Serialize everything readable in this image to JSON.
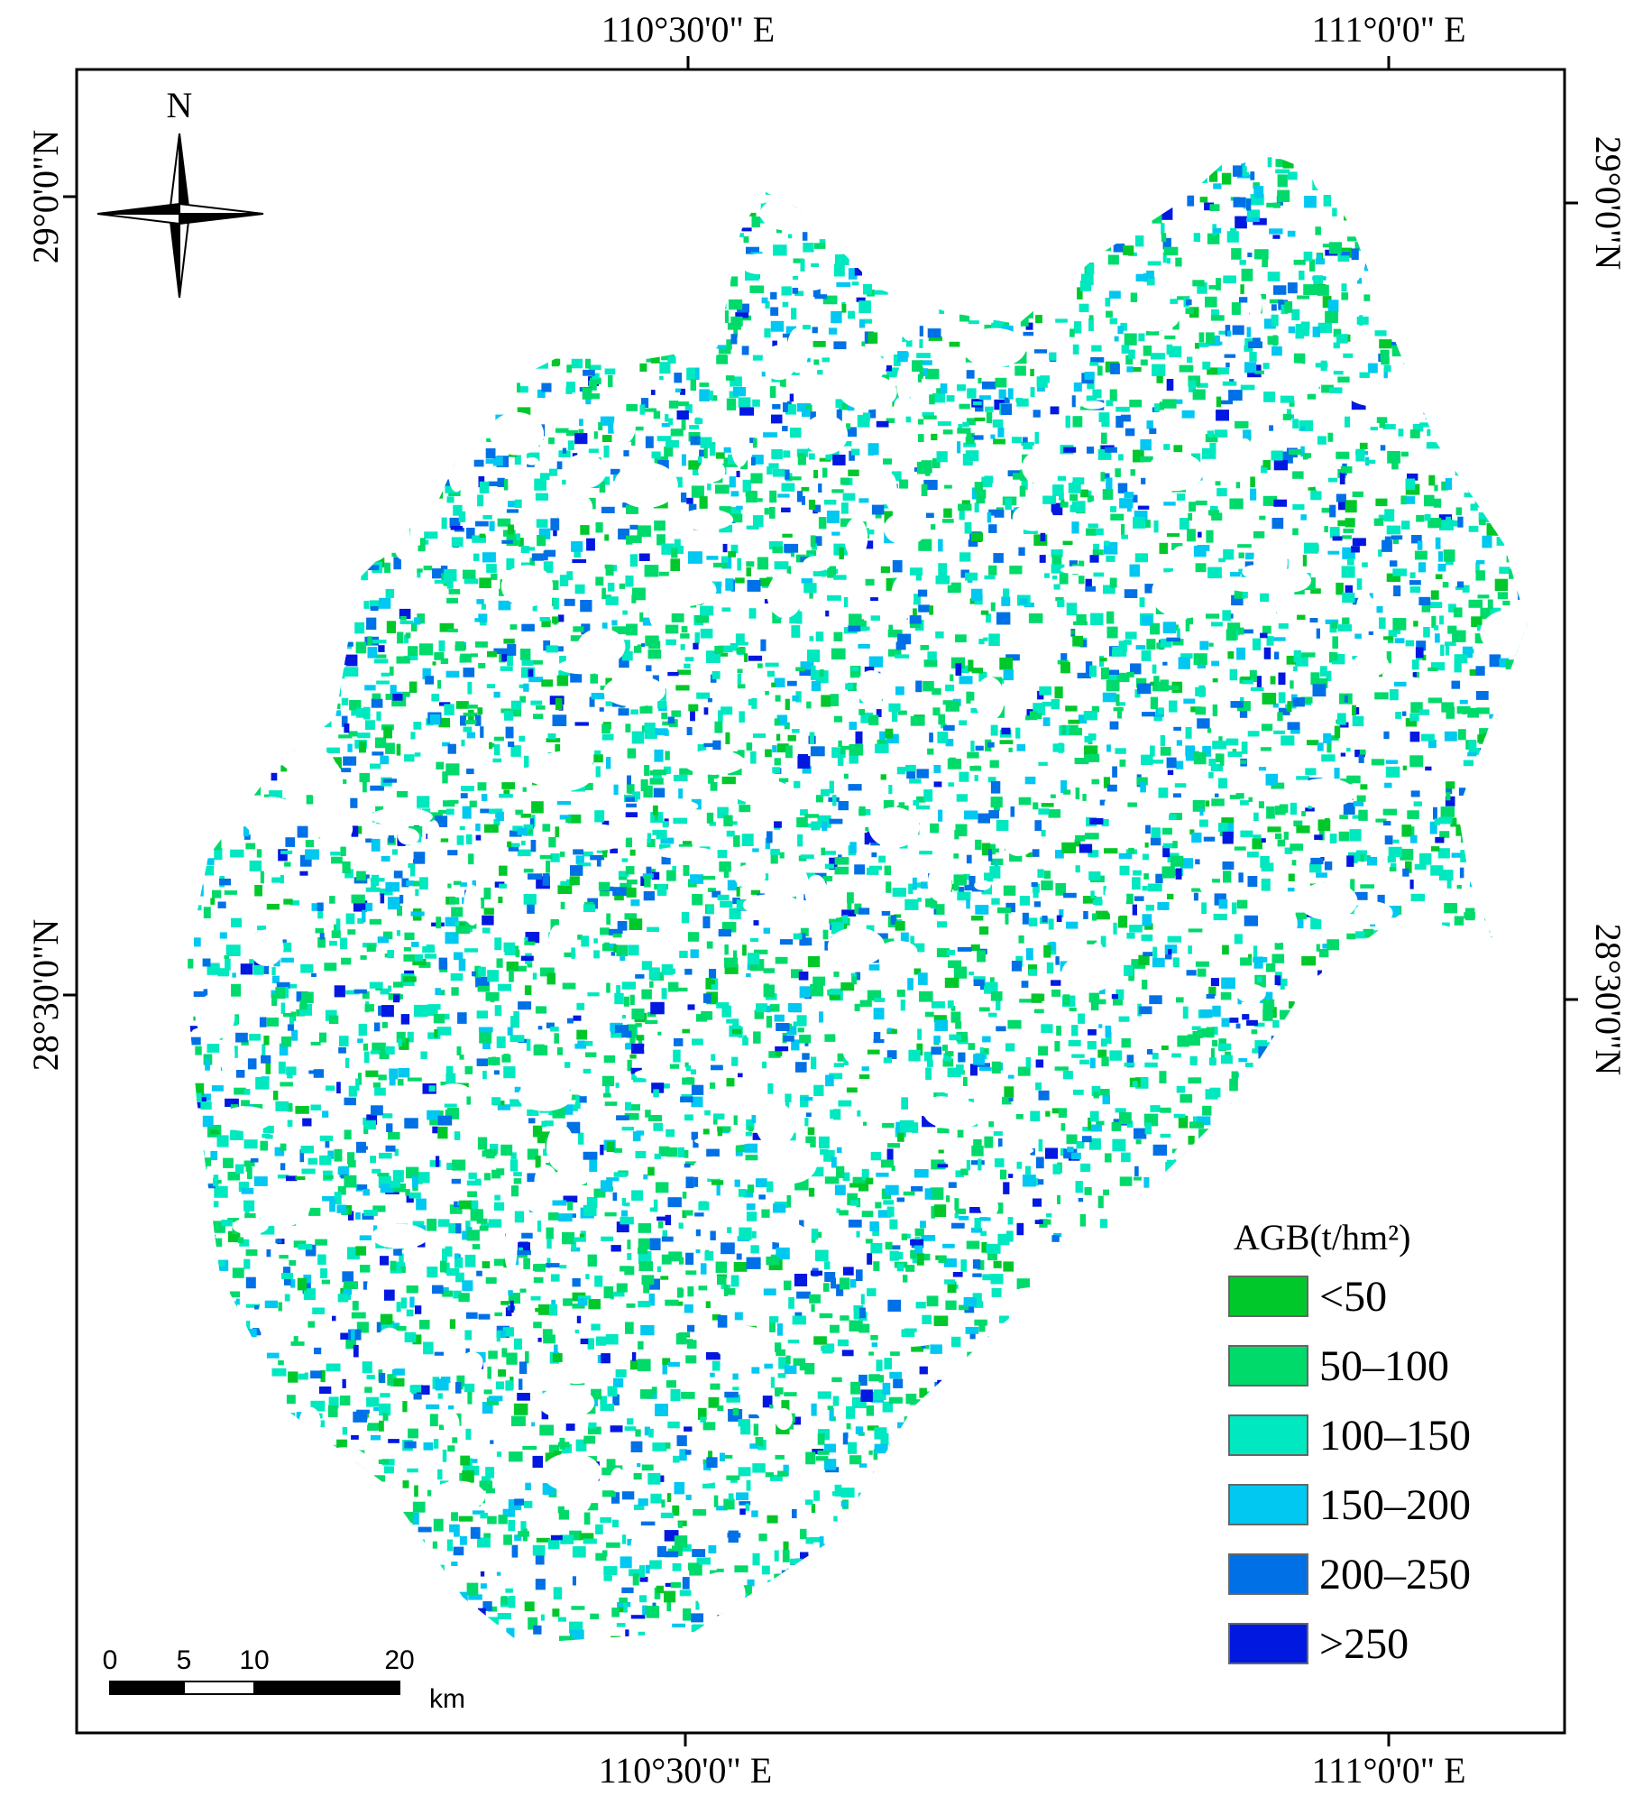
{
  "map": {
    "north_label": "N",
    "top_labels": [
      "110°30'0\" E",
      "111°0'0\" E"
    ],
    "bottom_labels": [
      "110°30'0\" E",
      "111°0'0\" E"
    ],
    "left_labels": [
      "29°0'0\"N",
      "28°30'0\"N"
    ],
    "right_labels": [
      "29°0'0\"N",
      "28°30'0\"N"
    ],
    "legend": {
      "title": "AGB(t/hm²)",
      "items": [
        {
          "label": "<50",
          "color": "#00c82a"
        },
        {
          "label": "50–100",
          "color": "#00da6a"
        },
        {
          "label": "100–150",
          "color": "#00e8c0"
        },
        {
          "label": "150–200",
          "color": "#00c8f0"
        },
        {
          "label": "200–250",
          "color": "#0070e6"
        },
        {
          "label": ">250",
          "color": "#0018e0"
        }
      ]
    },
    "scale_bar": {
      "labels": [
        "0",
        "5",
        "10",
        "20"
      ],
      "unit": "km"
    }
  }
}
